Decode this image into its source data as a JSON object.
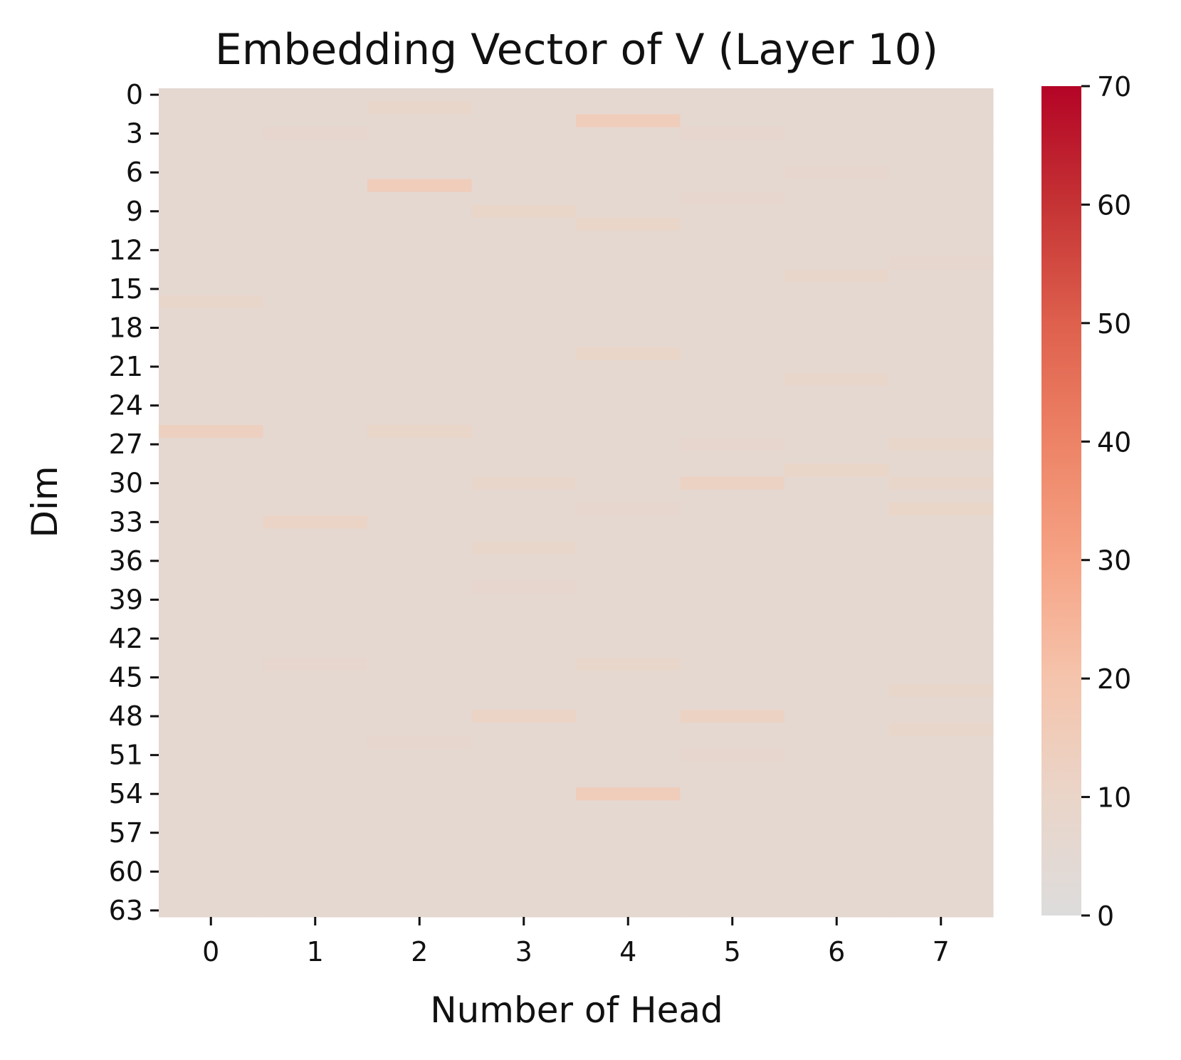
{
  "chart_data": {
    "type": "heatmap",
    "title": "Embedding Vector of V (Layer 10)",
    "xlabel": "Number of Head",
    "ylabel": "Dim",
    "x_categories": [
      "0",
      "1",
      "2",
      "3",
      "4",
      "5",
      "6",
      "7"
    ],
    "y_tick_labels": [
      "0",
      "3",
      "6",
      "9",
      "12",
      "15",
      "18",
      "21",
      "24",
      "27",
      "30",
      "33",
      "36",
      "39",
      "42",
      "45",
      "48",
      "51",
      "54",
      "57",
      "60",
      "63"
    ],
    "y_tick_values": [
      0,
      3,
      6,
      9,
      12,
      15,
      18,
      21,
      24,
      27,
      30,
      33,
      36,
      39,
      42,
      45,
      48,
      51,
      54,
      57,
      60,
      63
    ],
    "num_dims": 64,
    "colorbar": {
      "range": [
        0,
        70
      ],
      "ticks": [
        "0",
        "10",
        "20",
        "30",
        "40",
        "50",
        "60",
        "70"
      ],
      "tick_values": [
        0,
        10,
        20,
        30,
        40,
        50,
        60,
        70
      ],
      "colormap": "coolwarm (upper half)",
      "stops": [
        {
          "value": 0,
          "color": "#dddcdc"
        },
        {
          "value": 10,
          "color": "#ead5c9"
        },
        {
          "value": 20,
          "color": "#f5c4ac"
        },
        {
          "value": 30,
          "color": "#f6a385"
        },
        {
          "value": 40,
          "color": "#ed8366"
        },
        {
          "value": 50,
          "color": "#de604d"
        },
        {
          "value": 60,
          "color": "#c53334"
        },
        {
          "value": 70,
          "color": "#b40426"
        }
      ]
    },
    "baseline_value": 6,
    "highlights": [
      {
        "head": 0,
        "dim": 16,
        "value": 9
      },
      {
        "head": 0,
        "dim": 26,
        "value": 13
      },
      {
        "head": 1,
        "dim": 3,
        "value": 8
      },
      {
        "head": 1,
        "dim": 33,
        "value": 11
      },
      {
        "head": 1,
        "dim": 44,
        "value": 8
      },
      {
        "head": 2,
        "dim": 1,
        "value": 9
      },
      {
        "head": 2,
        "dim": 7,
        "value": 15
      },
      {
        "head": 2,
        "dim": 26,
        "value": 10
      },
      {
        "head": 2,
        "dim": 50,
        "value": 8
      },
      {
        "head": 3,
        "dim": 9,
        "value": 10
      },
      {
        "head": 3,
        "dim": 30,
        "value": 9
      },
      {
        "head": 3,
        "dim": 35,
        "value": 9
      },
      {
        "head": 3,
        "dim": 38,
        "value": 8
      },
      {
        "head": 3,
        "dim": 48,
        "value": 11
      },
      {
        "head": 4,
        "dim": 2,
        "value": 15
      },
      {
        "head": 4,
        "dim": 10,
        "value": 10
      },
      {
        "head": 4,
        "dim": 20,
        "value": 10
      },
      {
        "head": 4,
        "dim": 32,
        "value": 8
      },
      {
        "head": 4,
        "dim": 44,
        "value": 9
      },
      {
        "head": 4,
        "dim": 54,
        "value": 15
      },
      {
        "head": 5,
        "dim": 3,
        "value": 8
      },
      {
        "head": 5,
        "dim": 8,
        "value": 8
      },
      {
        "head": 5,
        "dim": 27,
        "value": 8
      },
      {
        "head": 5,
        "dim": 30,
        "value": 12
      },
      {
        "head": 5,
        "dim": 48,
        "value": 12
      },
      {
        "head": 5,
        "dim": 51,
        "value": 8
      },
      {
        "head": 6,
        "dim": 6,
        "value": 8
      },
      {
        "head": 6,
        "dim": 14,
        "value": 9
      },
      {
        "head": 6,
        "dim": 22,
        "value": 9
      },
      {
        "head": 6,
        "dim": 29,
        "value": 10
      },
      {
        "head": 7,
        "dim": 13,
        "value": 8
      },
      {
        "head": 7,
        "dim": 27,
        "value": 9
      },
      {
        "head": 7,
        "dim": 30,
        "value": 9
      },
      {
        "head": 7,
        "dim": 32,
        "value": 10
      },
      {
        "head": 7,
        "dim": 46,
        "value": 9
      },
      {
        "head": 7,
        "dim": 49,
        "value": 9
      }
    ]
  }
}
